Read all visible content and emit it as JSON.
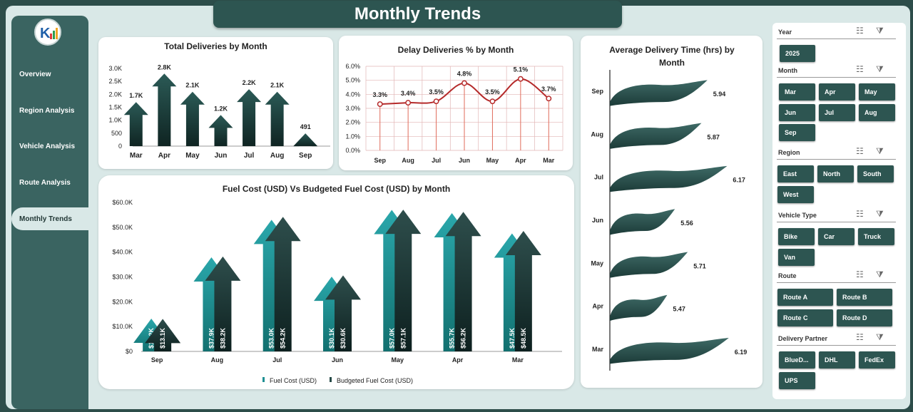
{
  "title": "Monthly Trends",
  "nav": {
    "items": [
      {
        "label": "Overview"
      },
      {
        "label": "Region Analysis"
      },
      {
        "label": "Vehicle Analysis"
      },
      {
        "label": "Route Analysis"
      },
      {
        "label": "Monthly Trends"
      }
    ],
    "active": "Monthly Trends"
  },
  "colors": {
    "accent": "#2d5551",
    "teal": "#1f8f93",
    "dark": "#264a47",
    "line": "#b52a2a"
  },
  "slicers": {
    "year": {
      "label": "Year",
      "options": [
        "2025"
      ]
    },
    "month": {
      "label": "Month",
      "options": [
        "Mar",
        "Apr",
        "May",
        "Jun",
        "Jul",
        "Aug",
        "Sep"
      ]
    },
    "region": {
      "label": "Region",
      "options": [
        "East",
        "North",
        "South",
        "West"
      ]
    },
    "vehicle_type": {
      "label": "Vehicle Type",
      "options": [
        "Bike",
        "Car",
        "Truck",
        "Van"
      ]
    },
    "route": {
      "label": "Route",
      "options": [
        "Route A",
        "Route B",
        "Route C",
        "Route D"
      ]
    },
    "delivery_partner": {
      "label": "Delivery Partner",
      "options": [
        "BlueD...",
        "DHL",
        "FedEx",
        "UPS"
      ]
    },
    "icons": [
      "multi-select-icon",
      "clear-filter-icon"
    ]
  },
  "chart_data": [
    {
      "type": "bar",
      "title": "Total Deliveries by Month",
      "categories": [
        "Mar",
        "Apr",
        "May",
        "Jun",
        "Jul",
        "Aug",
        "Sep"
      ],
      "values": [
        1700,
        2800,
        2100,
        1200,
        2200,
        2100,
        491
      ],
      "value_labels": [
        "1.7K",
        "2.8K",
        "2.1K",
        "1.2K",
        "2.2K",
        "2.1K",
        "491"
      ],
      "yticks": [
        "0",
        "500",
        "1.0K",
        "1.5K",
        "2.0K",
        "2.5K",
        "3.0K"
      ],
      "ylim": [
        0,
        3000
      ]
    },
    {
      "type": "line",
      "title": "Delay Deliveries % by Month",
      "categories": [
        "Sep",
        "Aug",
        "Jul",
        "Jun",
        "May",
        "Apr",
        "Mar"
      ],
      "values": [
        3.3,
        3.4,
        3.5,
        4.8,
        3.5,
        5.1,
        3.7
      ],
      "value_labels": [
        "3.3%",
        "3.4%",
        "3.5%",
        "4.8%",
        "3.5%",
        "5.1%",
        "3.7%"
      ],
      "yticks": [
        "0.0%",
        "1.0%",
        "2.0%",
        "3.0%",
        "4.0%",
        "5.0%",
        "6.0%"
      ],
      "ylim": [
        0,
        6
      ]
    },
    {
      "type": "bar",
      "title": "Fuel Cost (USD) Vs Budgeted Fuel Cost (USD) by Month",
      "categories": [
        "Sep",
        "Aug",
        "Jul",
        "Jun",
        "May",
        "Apr",
        "Mar"
      ],
      "series": [
        {
          "name": "Fuel Cost (USD)",
          "values": [
            13200,
            37900,
            53000,
            30100,
            57000,
            55700,
            47500
          ],
          "value_labels": [
            "$13.2K",
            "$37.9K",
            "$53.0K",
            "$30.1K",
            "$57.0K",
            "$55.7K",
            "$47.5K"
          ]
        },
        {
          "name": "Budgeted Fuel Cost (USD)",
          "values": [
            13100,
            38200,
            54200,
            30600,
            57100,
            56200,
            48500
          ],
          "value_labels": [
            "$13.1K",
            "$38.2K",
            "$54.2K",
            "$30.6K",
            "$57.1K",
            "$56.2K",
            "$48.5K"
          ]
        }
      ],
      "yticks": [
        "$0",
        "$10.0K",
        "$20.0K",
        "$30.0K",
        "$40.0K",
        "$50.0K",
        "$60.0K"
      ],
      "ylim": [
        0,
        60000
      ],
      "legend": "bottom"
    },
    {
      "type": "bar",
      "title": "Average Delivery Time (hrs) by Month",
      "orientation": "horizontal",
      "categories": [
        "Sep",
        "Aug",
        "Jul",
        "Jun",
        "May",
        "Apr",
        "Mar"
      ],
      "values": [
        5.94,
        5.87,
        6.17,
        5.56,
        5.71,
        5.47,
        6.19
      ],
      "value_labels": [
        "5.94",
        "5.87",
        "6.17",
        "5.56",
        "5.71",
        "5.47",
        "6.19"
      ]
    }
  ]
}
